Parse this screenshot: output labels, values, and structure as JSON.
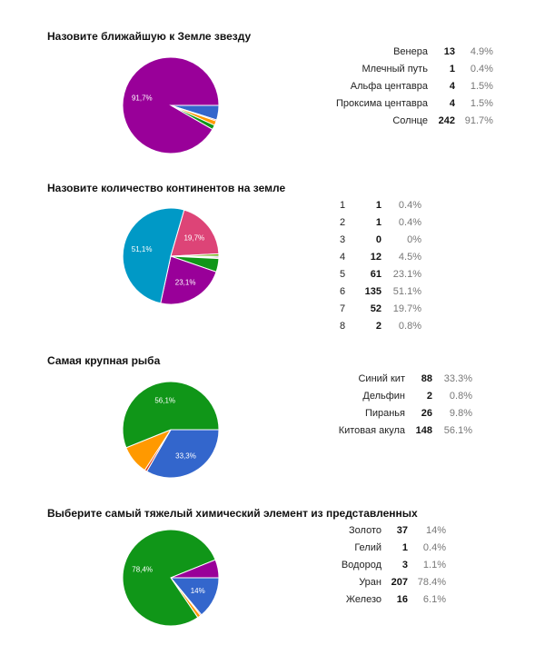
{
  "chart_data": [
    {
      "type": "pie",
      "title": "Назовите ближайшую к Земле звезду",
      "slices": [
        {
          "label": "Венера",
          "count": 13,
          "percent": "4.9%",
          "value": 4.9,
          "color": "#3366cc"
        },
        {
          "label": "Млечный путь",
          "count": 1,
          "percent": "0.4%",
          "value": 0.4,
          "color": "#dc3912"
        },
        {
          "label": "Альфа центавра",
          "count": 4,
          "percent": "1.5%",
          "value": 1.5,
          "color": "#ff9900"
        },
        {
          "label": "Проксима центавра",
          "count": 4,
          "percent": "1.5%",
          "value": 1.5,
          "color": "#109618"
        },
        {
          "label": "Солнце",
          "count": 242,
          "percent": "91.7%",
          "value": 91.7,
          "color": "#990099"
        }
      ],
      "inner_labels": [
        {
          "text": "91,7%",
          "slice": 4
        }
      ]
    },
    {
      "type": "pie",
      "title": "Назовите количество континентов на земле",
      "slices": [
        {
          "label": "1",
          "count": 1,
          "percent": "0.4%",
          "value": 0.4,
          "color": "#3366cc"
        },
        {
          "label": "2",
          "count": 1,
          "percent": "0.4%",
          "value": 0.4,
          "color": "#dc3912"
        },
        {
          "label": "3",
          "count": 0,
          "percent": "0%",
          "value": 0,
          "color": "#ff9900"
        },
        {
          "label": "4",
          "count": 12,
          "percent": "4.5%",
          "value": 4.5,
          "color": "#109618"
        },
        {
          "label": "5",
          "count": 61,
          "percent": "23.1%",
          "value": 23.1,
          "color": "#990099"
        },
        {
          "label": "6",
          "count": 135,
          "percent": "51.1%",
          "value": 51.1,
          "color": "#0099c6"
        },
        {
          "label": "7",
          "count": 52,
          "percent": "19.7%",
          "value": 19.7,
          "color": "#dd4477"
        },
        {
          "label": "8",
          "count": 2,
          "percent": "0.8%",
          "value": 0.8,
          "color": "#66aa00"
        }
      ],
      "inner_labels": [
        {
          "text": "23,1%",
          "slice": 4
        },
        {
          "text": "51,1%",
          "slice": 5
        },
        {
          "text": "19,7%",
          "slice": 6
        }
      ]
    },
    {
      "type": "pie",
      "title": "Самая крупная рыба",
      "slices": [
        {
          "label": "Синий кит",
          "count": 88,
          "percent": "33.3%",
          "value": 33.3,
          "color": "#3366cc"
        },
        {
          "label": "Дельфин",
          "count": 2,
          "percent": "0.8%",
          "value": 0.8,
          "color": "#dc3912"
        },
        {
          "label": "Пиранья",
          "count": 26,
          "percent": "9.8%",
          "value": 9.8,
          "color": "#ff9900"
        },
        {
          "label": "Китовая акула",
          "count": 148,
          "percent": "56.1%",
          "value": 56.1,
          "color": "#109618"
        }
      ],
      "inner_labels": [
        {
          "text": "33,3%",
          "slice": 0
        },
        {
          "text": "56,1%",
          "slice": 3
        }
      ]
    },
    {
      "type": "pie",
      "title": "Выберите самый тяжелый химический элемент из представленных",
      "slices": [
        {
          "label": "Золото",
          "count": 37,
          "percent": "14%",
          "value": 14,
          "color": "#3366cc"
        },
        {
          "label": "Гелий",
          "count": 1,
          "percent": "0.4%",
          "value": 0.4,
          "color": "#dc3912"
        },
        {
          "label": "Водород",
          "count": 3,
          "percent": "1.1%",
          "value": 1.1,
          "color": "#ff9900"
        },
        {
          "label": "Уран",
          "count": 207,
          "percent": "78.4%",
          "value": 78.4,
          "color": "#109618"
        },
        {
          "label": "Железо",
          "count": 16,
          "percent": "6.1%",
          "value": 6.1,
          "color": "#990099"
        }
      ],
      "inner_labels": [
        {
          "text": "14%",
          "slice": 0
        },
        {
          "text": "78,4%",
          "slice": 3
        }
      ]
    }
  ]
}
